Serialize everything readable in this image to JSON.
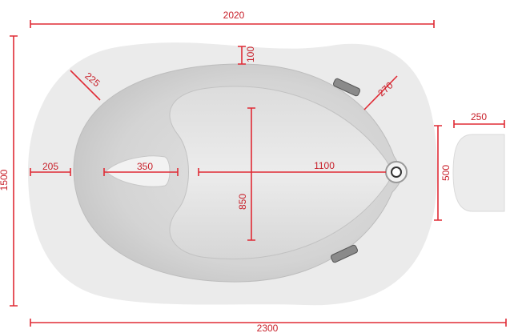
{
  "dimensions": [
    "2020",
    "100",
    "225",
    "270",
    "250",
    "205",
    "350",
    "1100",
    "500",
    "850",
    "2300",
    "1500"
  ]
}
